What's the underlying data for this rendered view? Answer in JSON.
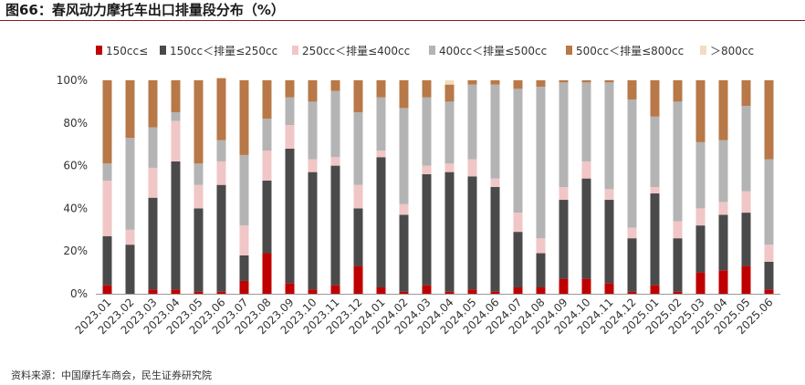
{
  "header": {
    "title": "图66：春风动力摩托车出口排量段分布（%）"
  },
  "footer": {
    "source": "资料来源：中国摩托车商会，民生证券研究院"
  },
  "colors": {
    "s1": "#c00000",
    "s2": "#4a4a4a",
    "s3": "#f1c6c6",
    "s4": "#b4b4b4",
    "s5": "#b87847",
    "s6": "#f2ddc0",
    "axis": "#999999",
    "text": "#333333"
  },
  "chart_data": {
    "type": "bar",
    "stacked": true,
    "title": "图66：春风动力摩托车出口排量段分布（%）",
    "xlabel": "",
    "ylabel": "",
    "ylim": [
      0,
      100
    ],
    "yticks": [
      "0%",
      "20%",
      "40%",
      "60%",
      "80%",
      "100%"
    ],
    "legend_position": "top",
    "categories": [
      "2023.01",
      "2023.02",
      "2023.03",
      "2023.04",
      "2023.05",
      "2023.06",
      "2023.07",
      "2023.08",
      "2023.09",
      "2023.10",
      "2023.11",
      "2023.12",
      "2024.01",
      "2024.02",
      "2024.03",
      "2024.04",
      "2024.05",
      "2024.06",
      "2024.07",
      "2024.08",
      "2024.09",
      "2024.10",
      "2024.11",
      "2024.12",
      "2025.01",
      "2025.02",
      "2025.03",
      "2025.04",
      "2025.05",
      "2025.06"
    ],
    "series": [
      {
        "name": "150cc≤",
        "values": [
          4,
          0,
          2,
          2,
          1,
          1,
          6,
          19,
          5,
          2,
          4,
          13,
          3,
          1,
          4,
          1,
          2,
          1,
          3,
          3,
          7,
          7,
          5,
          1,
          4,
          1,
          10,
          11,
          13,
          2
        ]
      },
      {
        "name": "150cc＜排量≤250cc",
        "values": [
          23,
          23,
          43,
          60,
          39,
          50,
          12,
          34,
          63,
          55,
          56,
          27,
          61,
          36,
          52,
          56,
          53,
          49,
          26,
          16,
          37,
          47,
          39,
          25,
          43,
          25,
          22,
          26,
          25,
          13
        ]
      },
      {
        "name": "250cc＜排量≤400cc",
        "values": [
          26,
          7,
          14,
          19,
          11,
          11,
          14,
          14,
          11,
          6,
          4,
          11,
          3,
          5,
          4,
          4,
          8,
          4,
          9,
          7,
          6,
          8,
          5,
          5,
          3,
          8,
          8,
          6,
          10,
          8
        ]
      },
      {
        "name": "400cc＜排量≤500cc",
        "values": [
          8,
          43,
          19,
          4,
          10,
          10,
          33,
          15,
          13,
          27,
          31,
          34,
          25,
          45,
          32,
          29,
          35,
          44,
          58,
          71,
          49,
          37,
          50,
          60,
          33,
          56,
          31,
          29,
          40,
          40
        ]
      },
      {
        "name": "500cc＜排量≤800cc",
        "values": [
          39,
          27,
          22,
          15,
          39,
          29,
          35,
          18,
          8,
          10,
          5,
          15,
          8,
          13,
          8,
          8,
          2,
          2,
          4,
          3,
          1,
          1,
          1,
          9,
          17,
          10,
          29,
          28,
          12,
          37
        ]
      },
      {
        "name": "＞800cc",
        "values": [
          0,
          0,
          0,
          0,
          0,
          0,
          0,
          0,
          0,
          0,
          0,
          0,
          0,
          0,
          0,
          2,
          0,
          0,
          0,
          0,
          0,
          0,
          0,
          0,
          0,
          0,
          0,
          0,
          0,
          0
        ]
      }
    ]
  }
}
